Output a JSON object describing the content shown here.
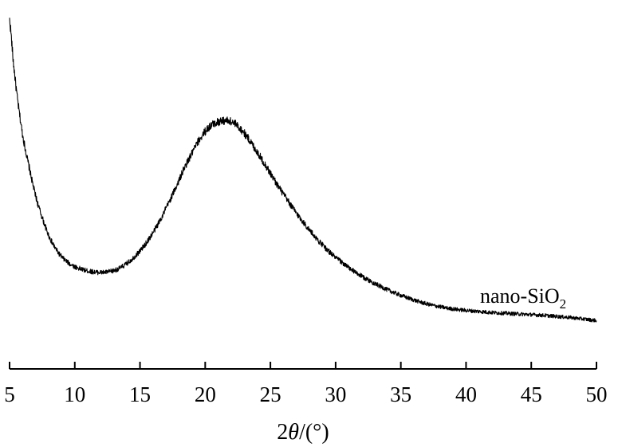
{
  "chart_data": {
    "type": "line",
    "title": "",
    "xlabel": "2θ/(°)",
    "xlabel_parts": {
      "number": "2",
      "symbol": "θ",
      "unit": "/(°)"
    },
    "ylabel": "",
    "xlim": [
      5,
      50
    ],
    "ylim": [
      0,
      100
    ],
    "x_ticks": [
      5,
      10,
      15,
      20,
      25,
      30,
      35,
      40,
      45,
      50
    ],
    "y_axis_visible": false,
    "grid": false,
    "legend": "none",
    "annotation": {
      "text": "nano-SiO",
      "subscript": "2"
    },
    "series": [
      {
        "color": "#000000",
        "x": [
          5.0,
          5.3,
          5.6,
          6.0,
          6.5,
          7.0,
          7.5,
          8.0,
          8.5,
          9.0,
          9.5,
          10.0,
          10.5,
          11.0,
          11.5,
          12.0,
          12.5,
          13.0,
          13.5,
          14.0,
          14.5,
          15.0,
          15.5,
          16.0,
          16.5,
          17.0,
          17.5,
          18.0,
          18.5,
          19.0,
          19.5,
          20.0,
          20.5,
          21.0,
          21.5,
          22.0,
          22.5,
          23.0,
          23.5,
          24.0,
          24.5,
          25.0,
          25.5,
          26.0,
          26.5,
          27.0,
          27.5,
          28.0,
          28.5,
          29.0,
          29.5,
          30.0,
          31.0,
          32.0,
          33.0,
          34.0,
          35.0,
          36.0,
          37.0,
          38.0,
          39.0,
          40.0,
          41.0,
          42.0,
          43.0,
          44.0,
          45.0,
          46.0,
          47.0,
          48.0,
          49.0,
          50.0
        ],
        "y": [
          97,
          85,
          75,
          65,
          56,
          48,
          42,
          37,
          33.5,
          31,
          29.4,
          28.3,
          27.6,
          27.1,
          26.8,
          26.7,
          26.8,
          27.2,
          28,
          29.2,
          30.8,
          32.7,
          35,
          37.8,
          41,
          44.6,
          48.4,
          52.5,
          56.5,
          60,
          63.4,
          66,
          67.8,
          68.7,
          69,
          68.7,
          67.5,
          65.5,
          63,
          60.2,
          57.3,
          54.3,
          51.3,
          48.5,
          45.8,
          43.2,
          40.8,
          38.5,
          36.3,
          34.3,
          32.5,
          30.8,
          28,
          25.6,
          23.6,
          21.8,
          20.3,
          19,
          17.9,
          17.1,
          16.5,
          16.1,
          15.8,
          15.5,
          15.3,
          15.1,
          14.9,
          14.7,
          14.4,
          14.1,
          13.7,
          13.3
        ]
      }
    ]
  }
}
